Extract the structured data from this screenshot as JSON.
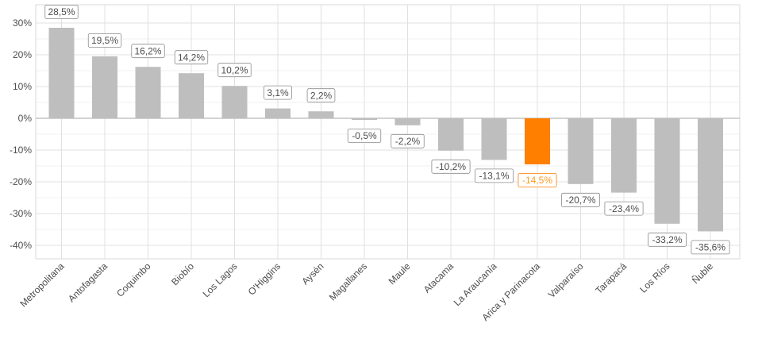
{
  "chart_data": {
    "type": "bar",
    "categories": [
      "Metropolitana",
      "Antofagasta",
      "Coquimbo",
      "Biobío",
      "Los Lagos",
      "O'Higgins",
      "Aysén",
      "Magallanes",
      "Maule",
      "Atacama",
      "La Araucanía",
      "Arica y Parinacota",
      "Valparaíso",
      "Tarapacá",
      "Los Ríos",
      "Ñuble"
    ],
    "values": [
      28.5,
      19.5,
      16.2,
      14.2,
      10.2,
      3.1,
      2.2,
      -0.5,
      -2.2,
      -10.2,
      -13.1,
      -14.5,
      -20.7,
      -23.4,
      -33.2,
      -35.6
    ],
    "data_labels": [
      "28,5%",
      "19,5%",
      "16,2%",
      "14,2%",
      "10,2%",
      "3,1%",
      "2,2%",
      "-0,5%",
      "-2,2%",
      "-10,2%",
      "-13,1%",
      "-14,5%",
      "-20,7%",
      "-23,4%",
      "-33,2%",
      "-35,6%"
    ],
    "highlight_category": "Arica y Parinacota",
    "y_ticks": [
      30,
      20,
      10,
      0,
      -10,
      -20,
      -30,
      -40
    ],
    "y_tick_labels": [
      "30%",
      "20%",
      "10%",
      "0%",
      "-10%",
      "-20%",
      "-30%",
      "-40%"
    ],
    "ylim": [
      -44,
      30
    ],
    "title": "",
    "xlabel": "",
    "ylabel": "",
    "grid": true,
    "legend": "none",
    "colors": {
      "bar": "#bebebe",
      "highlight": "#ff7f00",
      "label_text": "#4d4d4d",
      "highlight_label_text": "#ff9a1f",
      "grid_major": "#e0e0e0",
      "grid_minor": "#f0f0f0",
      "panel_border": "#d9d9d9",
      "zero_line": "#a6a6a6"
    }
  }
}
